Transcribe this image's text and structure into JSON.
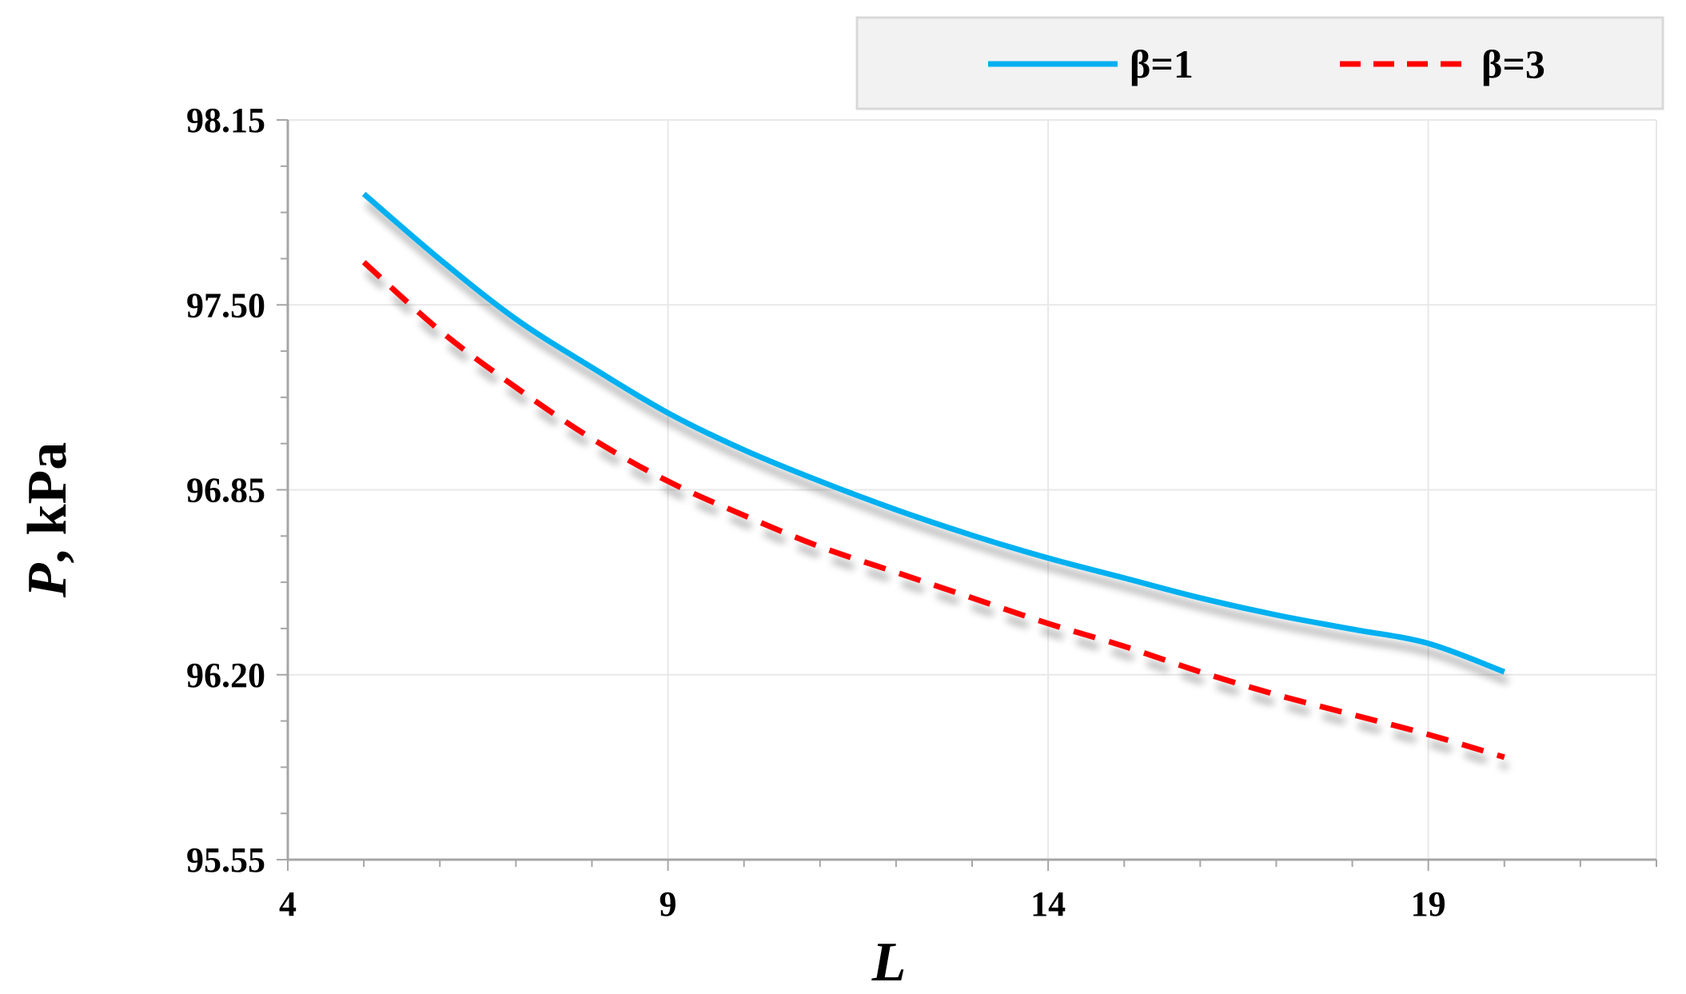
{
  "chart_data": {
    "type": "line",
    "title": "",
    "xlabel_main": "L",
    "ylabel_main": "P",
    "ylabel_suffix": ", kPa",
    "xlim": [
      4,
      22
    ],
    "ylim": [
      95.55,
      98.15
    ],
    "x_ticks": [
      4,
      9,
      14,
      19
    ],
    "x_tick_labels": [
      "4",
      "9",
      "14",
      "19"
    ],
    "y_ticks": [
      95.55,
      96.2,
      96.85,
      97.5,
      98.15
    ],
    "y_tick_labels": [
      "95.55",
      "96.20",
      "96.85",
      "97.50",
      "98.15"
    ],
    "grid": true,
    "legend_position": "top-right",
    "series": [
      {
        "name": "β=1",
        "color": "#00b0f0",
        "dash": "solid",
        "x": [
          5,
          6,
          7,
          8,
          9,
          10,
          11,
          12,
          13,
          14,
          15,
          16,
          17,
          18,
          19,
          20
        ],
        "y": [
          97.89,
          97.66,
          97.45,
          97.28,
          97.12,
          96.99,
          96.88,
          96.78,
          96.69,
          96.61,
          96.54,
          96.47,
          96.41,
          96.36,
          96.31,
          96.21
        ]
      },
      {
        "name": "β=3",
        "color": "#ff0000",
        "dash": "dashed",
        "x": [
          5,
          6,
          7,
          8,
          9,
          10,
          11,
          12,
          13,
          14,
          15,
          16,
          17,
          18,
          19,
          20
        ],
        "y": [
          97.65,
          97.41,
          97.21,
          97.03,
          96.88,
          96.76,
          96.65,
          96.56,
          96.47,
          96.38,
          96.3,
          96.21,
          96.13,
          96.06,
          95.99,
          95.91
        ]
      }
    ]
  }
}
